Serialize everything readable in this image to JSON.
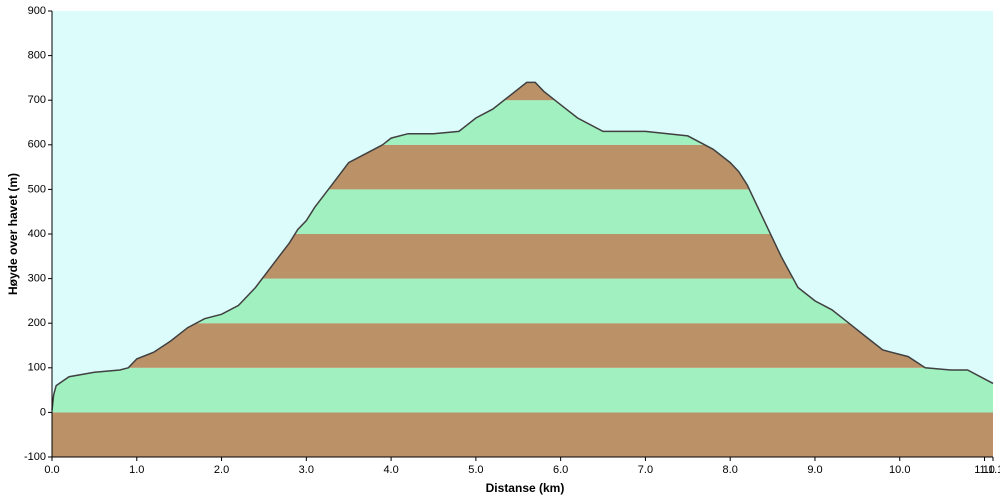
{
  "chart_data": {
    "type": "area",
    "xlabel": "Distanse  (km)",
    "ylabel": "Høyde over havet (m)",
    "x": [
      0,
      0.02,
      0.05,
      0.2,
      0.5,
      0.8,
      0.9,
      1.0,
      1.2,
      1.4,
      1.6,
      1.8,
      2.0,
      2.2,
      2.4,
      2.6,
      2.8,
      2.9,
      3.0,
      3.1,
      3.3,
      3.5,
      3.7,
      3.9,
      4.0,
      4.2,
      4.5,
      4.8,
      5.0,
      5.2,
      5.4,
      5.6,
      5.7,
      5.8,
      6.0,
      6.2,
      6.5,
      7.0,
      7.5,
      7.8,
      8.0,
      8.1,
      8.2,
      8.4,
      8.6,
      8.8,
      9.0,
      9.2,
      9.4,
      9.6,
      9.8,
      10.1,
      10.3,
      10.6,
      10.8,
      11.0,
      11.1
    ],
    "y": [
      5,
      40,
      60,
      80,
      90,
      95,
      100,
      120,
      135,
      160,
      190,
      210,
      220,
      240,
      280,
      330,
      380,
      410,
      430,
      460,
      510,
      560,
      580,
      600,
      615,
      625,
      625,
      630,
      660,
      680,
      710,
      740,
      740,
      720,
      690,
      660,
      630,
      630,
      620,
      590,
      560,
      540,
      510,
      430,
      350,
      280,
      250,
      230,
      200,
      170,
      140,
      125,
      100,
      95,
      95,
      75,
      65
    ],
    "line_color": "#404040",
    "band_colors": [
      "#bb9268",
      "#a0f0c0"
    ],
    "background": "#dcfcfc",
    "xlim": [
      0,
      11.1
    ],
    "ylim": [
      -100,
      900
    ],
    "xticks": [
      {
        "value": 0,
        "label": "0.0"
      },
      {
        "value": 1,
        "label": "1.0"
      },
      {
        "value": 2,
        "label": "2.0"
      },
      {
        "value": 3,
        "label": "3.0"
      },
      {
        "value": 4,
        "label": "4.0"
      },
      {
        "value": 5,
        "label": "5.0"
      },
      {
        "value": 6,
        "label": "6.0"
      },
      {
        "value": 7,
        "label": "7.0"
      },
      {
        "value": 8,
        "label": "8.0"
      },
      {
        "value": 9,
        "label": "9.0"
      },
      {
        "value": 10,
        "label": "10.0"
      },
      {
        "value": 11,
        "label": "11.0"
      },
      {
        "value": 11.1,
        "label": "11.1"
      }
    ],
    "yticks": [
      -100,
      0,
      100,
      200,
      300,
      400,
      500,
      600,
      700,
      800,
      900
    ]
  }
}
